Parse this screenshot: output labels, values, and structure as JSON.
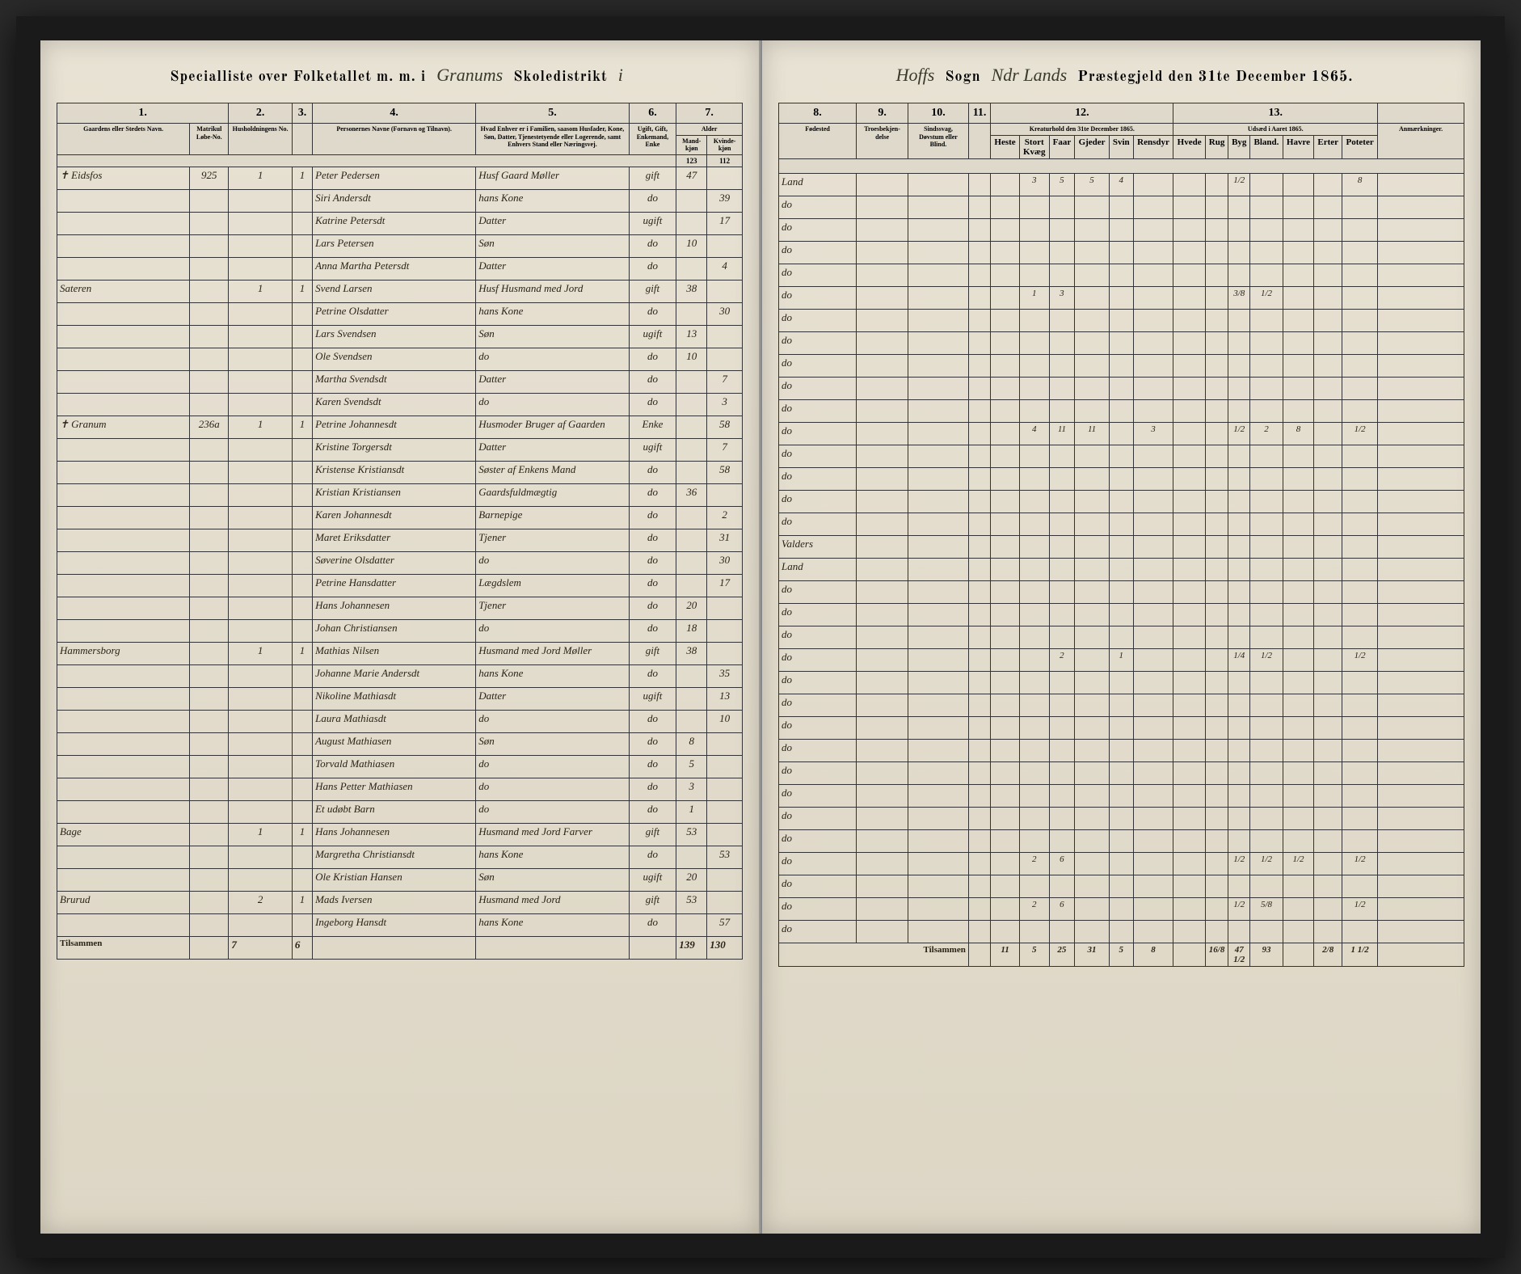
{
  "header": {
    "left_printed_1": "Specialliste over Folketallet m. m. i",
    "left_hand_1": "Granums",
    "left_printed_2": "Skoledistrikt",
    "left_hand_2": "i",
    "right_hand_1": "Hoffs",
    "right_printed_1": "Sogn",
    "right_hand_2": "Ndr Lands",
    "right_printed_2": "Præstegjeld den 31te December 1865."
  },
  "left_cols": {
    "c1": "1.",
    "c2": "2.",
    "c3": "3.",
    "c4": "4.",
    "c5": "5.",
    "c6": "6.",
    "c7": "7.",
    "h1": "Gaardens eller Stedets Navn.",
    "h1b": "Matrikul Løbe-No.",
    "h2": "Husholdningens No.",
    "h3": "",
    "h4": "Personernes Navne (Fornavn og Tilnavn).",
    "h5": "Hvad Enhver er i Familien, saasom Husfader, Kone, Søn, Datter, Tjenestetyende eller Logerende, samt Enhvers Stand eller Næringsvej.",
    "h6": "Ugift, Gift, Enkemand, Enke",
    "h7": "Alder",
    "h7a": "Mand-kjøn",
    "h7b": "Kvinde-kjøn"
  },
  "right_cols": {
    "c8": "8.",
    "c9": "9.",
    "c10": "10.",
    "c11": "11.",
    "c12": "12.",
    "c13": "13.",
    "h8": "Fødested",
    "h9": "Troesbekjen-delse",
    "h10": "Sindssvag, Døvstum eller Blind.",
    "h11": "",
    "h12": "Kreaturhold den 31te December 1865.",
    "h13": "Udsæd i Aaret 1865.",
    "h14": "Anmærkninger.",
    "k12a": "Heste",
    "k12b": "Stort Kvæg",
    "k12c": "Faar",
    "k12d": "Gjeder",
    "k12e": "Svin",
    "k12f": "Rensdyr",
    "k13a": "Hvede",
    "k13b": "Rug",
    "k13c": "Byg",
    "k13d": "Bland.",
    "k13e": "Havre",
    "k13f": "Erter",
    "k13g": "Poteter"
  },
  "carry": {
    "m": "123",
    "f": "112"
  },
  "rows": [
    {
      "gaard": "✝ Eidsfos",
      "mno": "925",
      "hh": "1",
      "fam": "1",
      "name": "Peter Pedersen",
      "role": "Husf Gaard Møller",
      "stat": "gift",
      "m": "47",
      "f": "",
      "place": "Land",
      "kre": [
        "",
        "3",
        "5",
        "5",
        "4",
        ""
      ],
      "uds": [
        "",
        "",
        "1/2",
        "",
        "",
        "",
        "8"
      ]
    },
    {
      "gaard": "",
      "mno": "",
      "hh": "",
      "fam": "",
      "name": "Siri Andersdt",
      "role": "hans Kone",
      "stat": "do",
      "m": "",
      "f": "39",
      "place": "do",
      "kre": [
        "",
        "",
        "",
        "",
        "",
        ""
      ],
      "uds": [
        "",
        "",
        "",
        "",
        "",
        "",
        ""
      ]
    },
    {
      "gaard": "",
      "mno": "",
      "hh": "",
      "fam": "",
      "name": "Katrine Petersdt",
      "role": "Datter",
      "stat": "ugift",
      "m": "",
      "f": "17",
      "place": "do",
      "kre": [
        "",
        "",
        "",
        "",
        "",
        ""
      ],
      "uds": [
        "",
        "",
        "",
        "",
        "",
        "",
        ""
      ]
    },
    {
      "gaard": "",
      "mno": "",
      "hh": "",
      "fam": "",
      "name": "Lars Petersen",
      "role": "Søn",
      "stat": "do",
      "m": "10",
      "f": "",
      "place": "do",
      "kre": [
        "",
        "",
        "",
        "",
        "",
        ""
      ],
      "uds": [
        "",
        "",
        "",
        "",
        "",
        "",
        ""
      ]
    },
    {
      "gaard": "",
      "mno": "",
      "hh": "",
      "fam": "",
      "name": "Anna Martha Petersdt",
      "role": "Datter",
      "stat": "do",
      "m": "",
      "f": "4",
      "place": "do",
      "kre": [
        "",
        "",
        "",
        "",
        "",
        ""
      ],
      "uds": [
        "",
        "",
        "",
        "",
        "",
        "",
        ""
      ]
    },
    {
      "gaard": "Sateren",
      "mno": "",
      "hh": "1",
      "fam": "1",
      "name": "Svend Larsen",
      "role": "Husf Husmand med Jord",
      "stat": "gift",
      "m": "38",
      "f": "",
      "place": "do",
      "kre": [
        "",
        "1",
        "3",
        "",
        "",
        ""
      ],
      "uds": [
        "",
        "",
        "3/8",
        "1/2",
        "",
        "",
        ""
      ]
    },
    {
      "gaard": "",
      "mno": "",
      "hh": "",
      "fam": "",
      "name": "Petrine Olsdatter",
      "role": "hans Kone",
      "stat": "do",
      "m": "",
      "f": "30",
      "place": "do",
      "kre": [
        "",
        "",
        "",
        "",
        "",
        ""
      ],
      "uds": [
        "",
        "",
        "",
        "",
        "",
        "",
        ""
      ]
    },
    {
      "gaard": "",
      "mno": "",
      "hh": "",
      "fam": "",
      "name": "Lars Svendsen",
      "role": "Søn",
      "stat": "ugift",
      "m": "13",
      "f": "",
      "place": "do",
      "kre": [
        "",
        "",
        "",
        "",
        "",
        ""
      ],
      "uds": [
        "",
        "",
        "",
        "",
        "",
        "",
        ""
      ]
    },
    {
      "gaard": "",
      "mno": "",
      "hh": "",
      "fam": "",
      "name": "Ole Svendsen",
      "role": "do",
      "stat": "do",
      "m": "10",
      "f": "",
      "place": "do",
      "kre": [
        "",
        "",
        "",
        "",
        "",
        ""
      ],
      "uds": [
        "",
        "",
        "",
        "",
        "",
        "",
        ""
      ]
    },
    {
      "gaard": "",
      "mno": "",
      "hh": "",
      "fam": "",
      "name": "Martha Svendsdt",
      "role": "Datter",
      "stat": "do",
      "m": "",
      "f": "7",
      "place": "do",
      "kre": [
        "",
        "",
        "",
        "",
        "",
        ""
      ],
      "uds": [
        "",
        "",
        "",
        "",
        "",
        "",
        ""
      ]
    },
    {
      "gaard": "",
      "mno": "",
      "hh": "",
      "fam": "",
      "name": "Karen Svendsdt",
      "role": "do",
      "stat": "do",
      "m": "",
      "f": "3",
      "place": "do",
      "kre": [
        "",
        "",
        "",
        "",
        "",
        ""
      ],
      "uds": [
        "",
        "",
        "",
        "",
        "",
        "",
        ""
      ]
    },
    {
      "gaard": "✝ Granum",
      "mno": "236a",
      "hh": "1",
      "fam": "1",
      "name": "Petrine Johannesdt",
      "role": "Husmoder Bruger af Gaarden",
      "stat": "Enke",
      "m": "",
      "f": "58",
      "place": "do",
      "kre": [
        "",
        "4",
        "11",
        "11",
        "",
        "3"
      ],
      "uds": [
        "",
        "",
        "1/2",
        "2",
        "8",
        "",
        "1/2"
      ]
    },
    {
      "gaard": "",
      "mno": "",
      "hh": "",
      "fam": "",
      "name": "Kristine Torgersdt",
      "role": "Datter",
      "stat": "ugift",
      "m": "",
      "f": "7",
      "place": "do",
      "kre": [
        "",
        "",
        "",
        "",
        "",
        ""
      ],
      "uds": [
        "",
        "",
        "",
        "",
        "",
        "",
        ""
      ]
    },
    {
      "gaard": "",
      "mno": "",
      "hh": "",
      "fam": "",
      "name": "Kristense Kristiansdt",
      "role": "Søster af Enkens Mand",
      "stat": "do",
      "m": "",
      "f": "58",
      "place": "do",
      "kre": [
        "",
        "",
        "",
        "",
        "",
        ""
      ],
      "uds": [
        "",
        "",
        "",
        "",
        "",
        "",
        ""
      ]
    },
    {
      "gaard": "",
      "mno": "",
      "hh": "",
      "fam": "",
      "name": "Kristian Kristiansen",
      "role": "Gaardsfuldmægtig",
      "stat": "do",
      "m": "36",
      "f": "",
      "place": "do",
      "kre": [
        "",
        "",
        "",
        "",
        "",
        ""
      ],
      "uds": [
        "",
        "",
        "",
        "",
        "",
        "",
        ""
      ]
    },
    {
      "gaard": "",
      "mno": "",
      "hh": "",
      "fam": "",
      "name": "Karen Johannesdt",
      "role": "Barnepige",
      "stat": "do",
      "m": "",
      "f": "2",
      "place": "do",
      "kre": [
        "",
        "",
        "",
        "",
        "",
        ""
      ],
      "uds": [
        "",
        "",
        "",
        "",
        "",
        "",
        ""
      ]
    },
    {
      "gaard": "",
      "mno": "",
      "hh": "",
      "fam": "",
      "name": "Maret Eriksdatter",
      "role": "Tjener",
      "stat": "do",
      "m": "",
      "f": "31",
      "place": "Valders",
      "kre": [
        "",
        "",
        "",
        "",
        "",
        ""
      ],
      "uds": [
        "",
        "",
        "",
        "",
        "",
        "",
        ""
      ]
    },
    {
      "gaard": "",
      "mno": "",
      "hh": "",
      "fam": "",
      "name": "Søverine Olsdatter",
      "role": "do",
      "stat": "do",
      "m": "",
      "f": "30",
      "place": "Land",
      "kre": [
        "",
        "",
        "",
        "",
        "",
        ""
      ],
      "uds": [
        "",
        "",
        "",
        "",
        "",
        "",
        ""
      ]
    },
    {
      "gaard": "",
      "mno": "",
      "hh": "",
      "fam": "",
      "name": "Petrine Hansdatter",
      "role": "Lægdslem",
      "stat": "do",
      "m": "",
      "f": "17",
      "place": "do",
      "kre": [
        "",
        "",
        "",
        "",
        "",
        ""
      ],
      "uds": [
        "",
        "",
        "",
        "",
        "",
        "",
        ""
      ]
    },
    {
      "gaard": "",
      "mno": "",
      "hh": "",
      "fam": "",
      "name": "Hans Johannesen",
      "role": "Tjener",
      "stat": "do",
      "m": "20",
      "f": "",
      "place": "do",
      "kre": [
        "",
        "",
        "",
        "",
        "",
        ""
      ],
      "uds": [
        "",
        "",
        "",
        "",
        "",
        "",
        ""
      ]
    },
    {
      "gaard": "",
      "mno": "",
      "hh": "",
      "fam": "",
      "name": "Johan Christiansen",
      "role": "do",
      "stat": "do",
      "m": "18",
      "f": "",
      "place": "do",
      "kre": [
        "",
        "",
        "",
        "",
        "",
        ""
      ],
      "uds": [
        "",
        "",
        "",
        "",
        "",
        "",
        ""
      ]
    },
    {
      "gaard": "Hammersborg",
      "mno": "",
      "hh": "1",
      "fam": "1",
      "name": "Mathias Nilsen",
      "role": "Husmand med Jord Møller",
      "stat": "gift",
      "m": "38",
      "f": "",
      "place": "do",
      "kre": [
        "",
        "",
        "2",
        "",
        "1",
        ""
      ],
      "uds": [
        "",
        "",
        "1/4",
        "1/2",
        "",
        "",
        "1/2"
      ]
    },
    {
      "gaard": "",
      "mno": "",
      "hh": "",
      "fam": "",
      "name": "Johanne Marie Andersdt",
      "role": "hans Kone",
      "stat": "do",
      "m": "",
      "f": "35",
      "place": "do",
      "kre": [
        "",
        "",
        "",
        "",
        "",
        ""
      ],
      "uds": [
        "",
        "",
        "",
        "",
        "",
        "",
        ""
      ]
    },
    {
      "gaard": "",
      "mno": "",
      "hh": "",
      "fam": "",
      "name": "Nikoline Mathiasdt",
      "role": "Datter",
      "stat": "ugift",
      "m": "",
      "f": "13",
      "place": "do",
      "kre": [
        "",
        "",
        "",
        "",
        "",
        ""
      ],
      "uds": [
        "",
        "",
        "",
        "",
        "",
        "",
        ""
      ]
    },
    {
      "gaard": "",
      "mno": "",
      "hh": "",
      "fam": "",
      "name": "Laura Mathiasdt",
      "role": "do",
      "stat": "do",
      "m": "",
      "f": "10",
      "place": "do",
      "kre": [
        "",
        "",
        "",
        "",
        "",
        ""
      ],
      "uds": [
        "",
        "",
        "",
        "",
        "",
        "",
        ""
      ]
    },
    {
      "gaard": "",
      "mno": "",
      "hh": "",
      "fam": "",
      "name": "August Mathiasen",
      "role": "Søn",
      "stat": "do",
      "m": "8",
      "f": "",
      "place": "do",
      "kre": [
        "",
        "",
        "",
        "",
        "",
        ""
      ],
      "uds": [
        "",
        "",
        "",
        "",
        "",
        "",
        ""
      ]
    },
    {
      "gaard": "",
      "mno": "",
      "hh": "",
      "fam": "",
      "name": "Torvald Mathiasen",
      "role": "do",
      "stat": "do",
      "m": "5",
      "f": "",
      "place": "do",
      "kre": [
        "",
        "",
        "",
        "",
        "",
        ""
      ],
      "uds": [
        "",
        "",
        "",
        "",
        "",
        "",
        ""
      ]
    },
    {
      "gaard": "",
      "mno": "",
      "hh": "",
      "fam": "",
      "name": "Hans Petter Mathiasen",
      "role": "do",
      "stat": "do",
      "m": "3",
      "f": "",
      "place": "do",
      "kre": [
        "",
        "",
        "",
        "",
        "",
        ""
      ],
      "uds": [
        "",
        "",
        "",
        "",
        "",
        "",
        ""
      ]
    },
    {
      "gaard": "",
      "mno": "",
      "hh": "",
      "fam": "",
      "name": "Et udøbt Barn",
      "role": "do",
      "stat": "do",
      "m": "1",
      "f": "",
      "place": "do",
      "kre": [
        "",
        "",
        "",
        "",
        "",
        ""
      ],
      "uds": [
        "",
        "",
        "",
        "",
        "",
        "",
        ""
      ]
    },
    {
      "gaard": "Bage",
      "mno": "",
      "hh": "1",
      "fam": "1",
      "name": "Hans Johannesen",
      "role": "Husmand med Jord Farver",
      "stat": "gift",
      "m": "53",
      "f": "",
      "place": "do",
      "kre": [
        "",
        "",
        "",
        "",
        "",
        ""
      ],
      "uds": [
        "",
        "",
        "",
        "",
        "",
        "",
        ""
      ]
    },
    {
      "gaard": "",
      "mno": "",
      "hh": "",
      "fam": "",
      "name": "Margretha Christiansdt",
      "role": "hans Kone",
      "stat": "do",
      "m": "",
      "f": "53",
      "place": "do",
      "kre": [
        "",
        "2",
        "6",
        "",
        "",
        ""
      ],
      "uds": [
        "",
        "",
        "1/2",
        "1/2",
        "1/2",
        "",
        "1/2"
      ]
    },
    {
      "gaard": "",
      "mno": "",
      "hh": "",
      "fam": "",
      "name": "Ole Kristian Hansen",
      "role": "Søn",
      "stat": "ugift",
      "m": "20",
      "f": "",
      "place": "do",
      "kre": [
        "",
        "",
        "",
        "",
        "",
        ""
      ],
      "uds": [
        "",
        "",
        "",
        "",
        "",
        "",
        ""
      ]
    },
    {
      "gaard": "Brurud",
      "mno": "",
      "hh": "2",
      "fam": "1",
      "name": "Mads Iversen",
      "role": "Husmand med Jord",
      "stat": "gift",
      "m": "53",
      "f": "",
      "place": "do",
      "kre": [
        "",
        "2",
        "6",
        "",
        "",
        ""
      ],
      "uds": [
        "",
        "",
        "1/2",
        "5/8",
        "",
        "",
        "1/2"
      ]
    },
    {
      "gaard": "",
      "mno": "",
      "hh": "",
      "fam": "",
      "name": "Ingeborg Hansdt",
      "role": "hans Kone",
      "stat": "do",
      "m": "",
      "f": "57",
      "place": "do",
      "kre": [
        "",
        "",
        "",
        "",
        "",
        ""
      ],
      "uds": [
        "",
        "",
        "",
        "",
        "",
        "",
        ""
      ]
    }
  ],
  "totals": {
    "left_label": "Tilsammen",
    "left_hh": "7",
    "left_fam": "6",
    "m": "139",
    "f": "130",
    "right_label": "Tilsammen",
    "kre": [
      "11",
      "5",
      "25",
      "31",
      "5",
      "8"
    ],
    "uds": [
      "",
      "16/8",
      "47 1/2",
      "93",
      "",
      "2/8",
      "1 1/2"
    ]
  }
}
